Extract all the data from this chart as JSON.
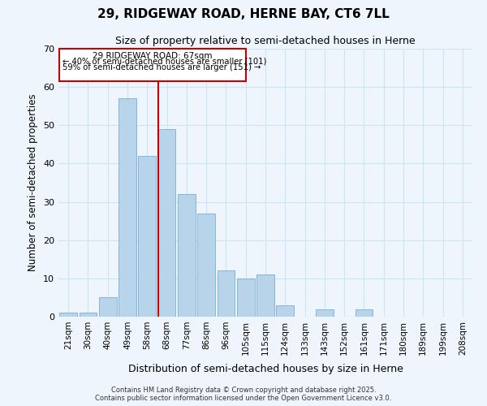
{
  "title": "29, RIDGEWAY ROAD, HERNE BAY, CT6 7LL",
  "subtitle": "Size of property relative to semi-detached houses in Herne",
  "xlabel": "Distribution of semi-detached houses by size in Herne",
  "ylabel": "Number of semi-detached properties",
  "categories": [
    "21sqm",
    "30sqm",
    "40sqm",
    "49sqm",
    "58sqm",
    "68sqm",
    "77sqm",
    "86sqm",
    "96sqm",
    "105sqm",
    "115sqm",
    "124sqm",
    "133sqm",
    "143sqm",
    "152sqm",
    "161sqm",
    "171sqm",
    "180sqm",
    "189sqm",
    "199sqm",
    "208sqm"
  ],
  "values": [
    1,
    1,
    5,
    57,
    42,
    49,
    32,
    27,
    12,
    10,
    11,
    3,
    0,
    2,
    0,
    2,
    0,
    0,
    0,
    0,
    0
  ],
  "bar_color": "#b8d4ea",
  "bar_edge_color": "#7aadd4",
  "grid_color": "#cde4f5",
  "background_color": "#eef5fc",
  "vline_color": "#cc0000",
  "ylim": [
    0,
    70
  ],
  "yticks": [
    0,
    10,
    20,
    30,
    40,
    50,
    60,
    70
  ],
  "annotation_title": "29 RIDGEWAY ROAD: 67sqm",
  "annotation_line1": "← 40% of semi-detached houses are smaller (101)",
  "annotation_line2": "59% of semi-detached houses are larger (151) →",
  "footer1": "Contains HM Land Registry data © Crown copyright and database right 2025.",
  "footer2": "Contains public sector information licensed under the Open Government Licence v3.0."
}
